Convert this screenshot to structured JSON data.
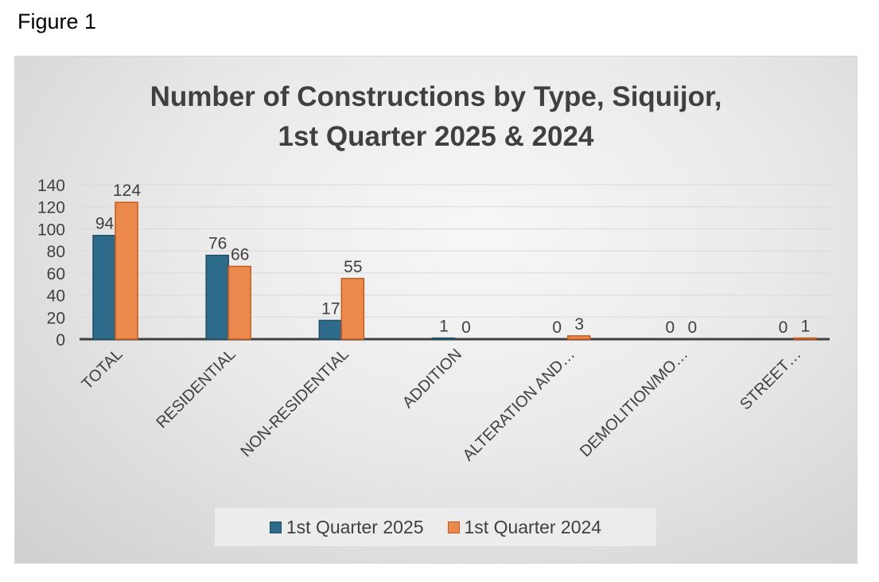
{
  "figure_label": "Figure 1",
  "chart_data": {
    "type": "bar",
    "title": "Number of Constructions by Type, Siquijor,",
    "subtitle": "1st Quarter 2025 & 2024",
    "xlabel": "",
    "ylabel": "",
    "categories": [
      "TOTAL",
      "RESIDENTIAL",
      "NON-RESIDENTIAL",
      "ADDITION",
      "ALTERATION AND…",
      "DEMOLITION/MO…",
      "STREET…"
    ],
    "series": [
      {
        "name": "1st Quarter 2025",
        "values": [
          94,
          76,
          17,
          1,
          0,
          0,
          0
        ],
        "color": "#2e6b8a",
        "stroke": "#1f4f68"
      },
      {
        "name": "1st Quarter 2024",
        "values": [
          124,
          66,
          55,
          0,
          3,
          0,
          1
        ],
        "color": "#ec8a4d",
        "stroke": "#c55a1c"
      }
    ],
    "ylim": [
      0,
      140
    ],
    "yticks": [
      0,
      20,
      40,
      60,
      80,
      100,
      120,
      140
    ],
    "grid": true,
    "legend": "bottom"
  }
}
